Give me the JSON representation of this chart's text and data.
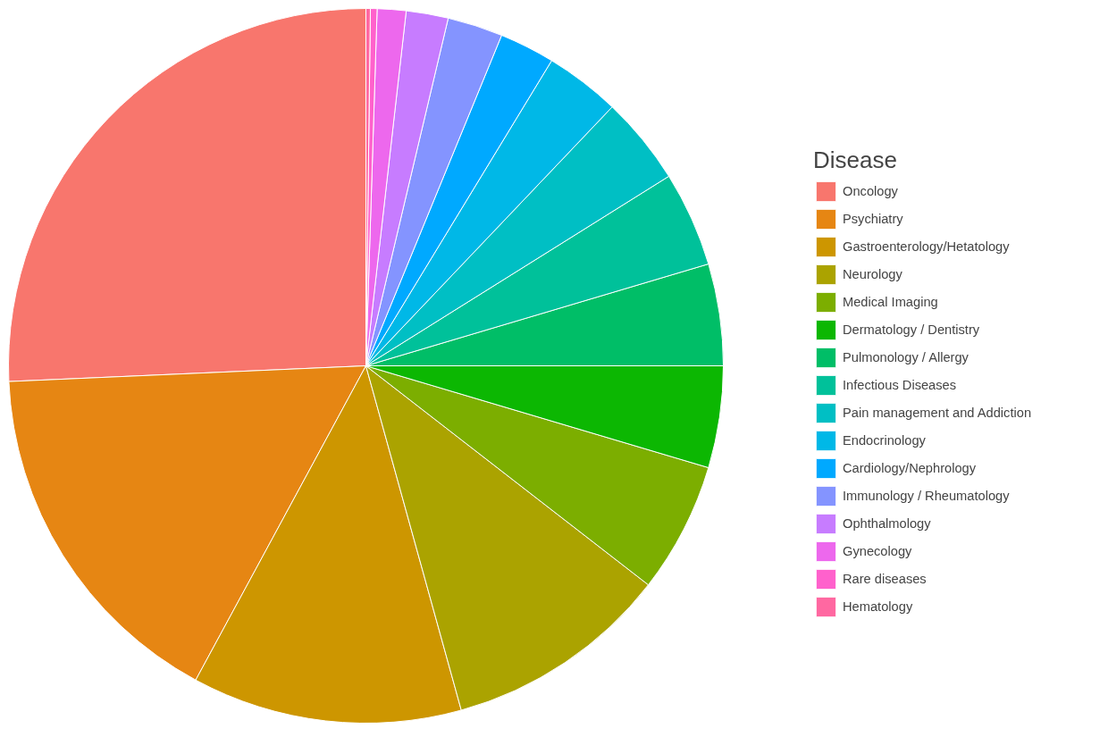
{
  "chart_data": {
    "type": "pie",
    "legend_title": "Disease",
    "legend": "right",
    "categories": [
      "Oncology",
      "Psychiatry",
      "Gastroenterology/Hetatology",
      "Neurology",
      "Medical Imaging",
      "Dermatology / Dentistry",
      "Pulmonology / Allergy",
      "Infectious Diseases",
      "Pain management and Addiction",
      "Endocrinology",
      "Cardiology/Nephrology",
      "Immunology / Rheumatology",
      "Ophthalmology",
      "Gynecology",
      "Rare diseases",
      "Hematology"
    ],
    "values": [
      25.7,
      16.4,
      12.2,
      10.2,
      5.9,
      4.6,
      4.6,
      4.3,
      4.0,
      3.4,
      2.5,
      2.5,
      1.9,
      1.3,
      0.3,
      0.2
    ],
    "colors": [
      "#f8766d",
      "#e68613",
      "#cd9600",
      "#aba300",
      "#7cae00",
      "#0cb702",
      "#00be67",
      "#00c19a",
      "#00bfc4",
      "#00b8e7",
      "#00a9ff",
      "#8494ff",
      "#c77cff",
      "#ed68ed",
      "#ff61cc",
      "#ff68a1"
    ]
  }
}
